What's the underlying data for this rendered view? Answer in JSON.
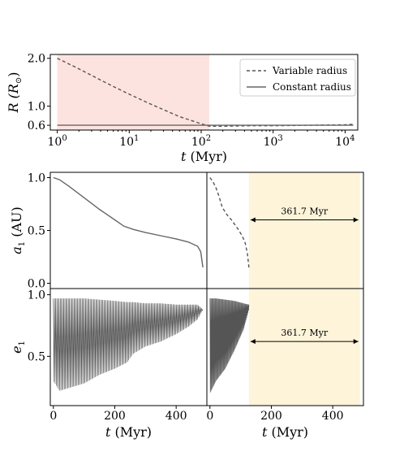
{
  "chart_data": [
    {
      "type": "line",
      "id": "top",
      "xscale": "log",
      "xlim": [
        0.8,
        15000
      ],
      "ylim": [
        0.5,
        2.08
      ],
      "xticks": [
        {
          "v": 1,
          "b": "10",
          "e": "0"
        },
        {
          "v": 10,
          "b": "10",
          "e": "1"
        },
        {
          "v": 100,
          "b": "10",
          "e": "2"
        },
        {
          "v": 1000,
          "b": "10",
          "e": "3"
        },
        {
          "v": 10000,
          "b": "10",
          "e": "4"
        }
      ],
      "yticks": [
        {
          "v": 0.6,
          "t": "0.6"
        },
        {
          "v": 1.0,
          "t": "1.0"
        },
        {
          "v": 2.0,
          "t": "2.0"
        }
      ],
      "ylabel_main": "R",
      "ylabel_paren": "(R",
      "ylabel_sub": "⊙",
      "ylabel_close": ")",
      "xlabel_var": "t",
      "xlabel_unit": "(Myr)",
      "shaded": {
        "x0": 1,
        "x1": 130,
        "color": "#fde3e0"
      },
      "legend_position": "top-right",
      "series": [
        {
          "name": "Variable radius",
          "style": "dashed",
          "x": [
            1,
            2,
            5,
            10,
            20,
            50,
            100,
            130,
            200,
            500,
            1000,
            3000,
            10000,
            13000
          ],
          "y": [
            2.0,
            1.78,
            1.47,
            1.25,
            1.04,
            0.78,
            0.63,
            0.58,
            0.58,
            0.59,
            0.59,
            0.6,
            0.61,
            0.62
          ]
        },
        {
          "name": "Constant radius",
          "style": "solid",
          "x": [
            1,
            13000
          ],
          "y": [
            0.6,
            0.6
          ]
        }
      ]
    },
    {
      "type": "line",
      "id": "a_left",
      "xlim": [
        -10,
        500
      ],
      "ylim": [
        -0.05,
        1.05
      ],
      "xticks": [],
      "yticks": [
        {
          "v": 0.0,
          "t": "0.0"
        },
        {
          "v": 0.5,
          "t": "0.5"
        },
        {
          "v": 1.0,
          "t": "1.0"
        }
      ],
      "ylabel_var": "a",
      "ylabel_sub": "1",
      "ylabel_unit": "(AU)",
      "series": [
        {
          "name": "",
          "style": "solid",
          "x": [
            0,
            20,
            50,
            100,
            150,
            200,
            230,
            260,
            300,
            350,
            400,
            440,
            470,
            480,
            487
          ],
          "y": [
            1.0,
            0.98,
            0.92,
            0.81,
            0.7,
            0.6,
            0.54,
            0.51,
            0.48,
            0.45,
            0.42,
            0.39,
            0.35,
            0.3,
            0.15
          ]
        }
      ]
    },
    {
      "type": "line",
      "id": "a_right",
      "xlim": [
        -10,
        500
      ],
      "ylim": [
        -0.05,
        1.05
      ],
      "shaded": {
        "x0": 127,
        "x1": 488.7,
        "color": "#fdf4d9"
      },
      "annotation": {
        "text": "361.7 Myr",
        "x0": 127,
        "x1": 488.7,
        "y": 0.6
      },
      "series": [
        {
          "name": "",
          "style": "dashed",
          "x": [
            0,
            10,
            20,
            30,
            40,
            55,
            70,
            90,
            105,
            115,
            122,
            127
          ],
          "y": [
            1.0,
            0.96,
            0.9,
            0.82,
            0.72,
            0.65,
            0.6,
            0.52,
            0.45,
            0.38,
            0.28,
            0.15
          ]
        }
      ]
    },
    {
      "type": "line",
      "id": "e_left",
      "xlim": [
        -10,
        500
      ],
      "ylim": [
        0.1,
        1.05
      ],
      "xticks": [
        {
          "v": 0,
          "t": "0"
        },
        {
          "v": 200,
          "t": "200"
        },
        {
          "v": 400,
          "t": "400"
        }
      ],
      "yticks": [
        {
          "v": 0.5,
          "t": "0.5"
        },
        {
          "v": 1.0,
          "t": "1.0"
        }
      ],
      "ylabel_var": "e",
      "ylabel_sub": "1",
      "xlabel_var": "t",
      "xlabel_unit": "(Myr)",
      "envelope": {
        "x": [
          0,
          20,
          60,
          100,
          150,
          200,
          240,
          260,
          300,
          350,
          400,
          440,
          470,
          487
        ],
        "upper": [
          0.97,
          0.97,
          0.97,
          0.97,
          0.96,
          0.95,
          0.94,
          0.94,
          0.93,
          0.93,
          0.92,
          0.92,
          0.92,
          0.88
        ],
        "lower": [
          0.3,
          0.22,
          0.25,
          0.28,
          0.35,
          0.4,
          0.45,
          0.52,
          0.58,
          0.62,
          0.68,
          0.74,
          0.8,
          0.88
        ]
      }
    },
    {
      "type": "line",
      "id": "e_right",
      "xlim": [
        -10,
        500
      ],
      "ylim": [
        0.1,
        1.05
      ],
      "xticks": [
        {
          "v": 0,
          "t": "0"
        },
        {
          "v": 200,
          "t": "200"
        },
        {
          "v": 400,
          "t": "400"
        }
      ],
      "xlabel_var": "t",
      "xlabel_unit": "(Myr)",
      "shaded": {
        "x0": 127,
        "x1": 488.7,
        "color": "#fdf4d9"
      },
      "annotation": {
        "text": "361.7 Myr",
        "x0": 127,
        "x1": 488.7,
        "y": 0.62
      },
      "envelope": {
        "x": [
          0,
          20,
          50,
          80,
          110,
          127
        ],
        "upper": [
          0.97,
          0.97,
          0.96,
          0.95,
          0.93,
          0.92
        ],
        "lower": [
          0.2,
          0.3,
          0.4,
          0.55,
          0.72,
          0.88
        ]
      }
    }
  ]
}
